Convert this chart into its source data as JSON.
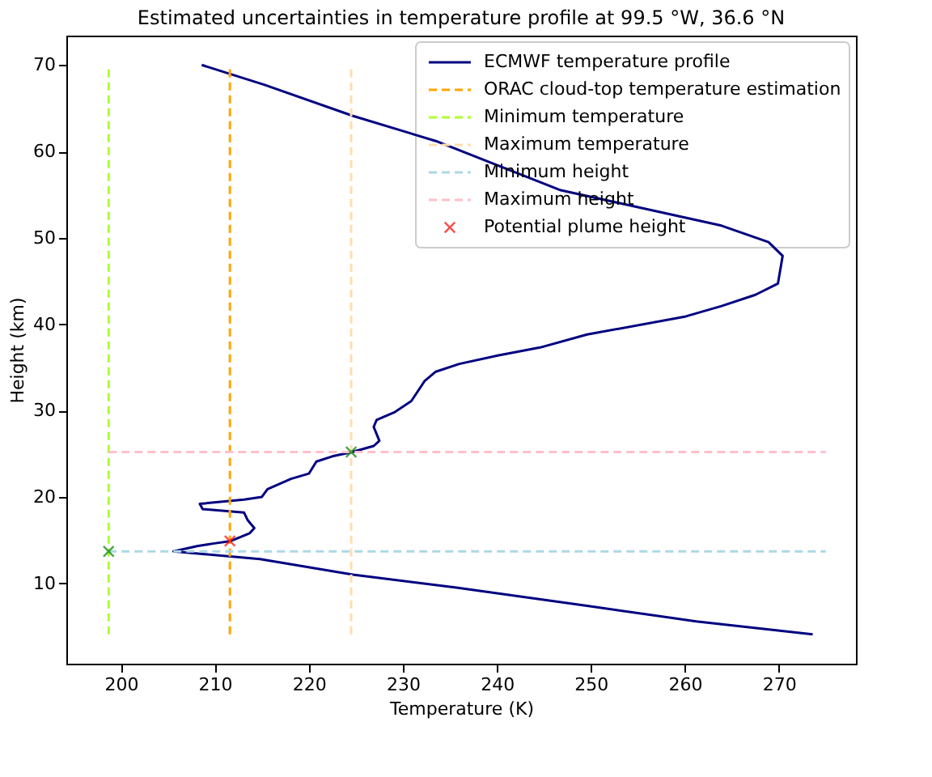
{
  "chart_data": {
    "type": "line",
    "title": "Estimated uncertainties in temperature profile at 99.5 °W, 36.6 °N",
    "xlabel": "Temperature (K)",
    "ylabel": "Height (km)",
    "xlim": [
      194.2,
      278.2
    ],
    "ylim": [
      0.7,
      73.4
    ],
    "xticks": [
      200,
      210,
      220,
      230,
      240,
      250,
      260,
      270
    ],
    "yticks": [
      10,
      20,
      30,
      40,
      50,
      60,
      70
    ],
    "grid": false,
    "legend": "top right",
    "series": [
      {
        "name": "ECMWF temperature profile",
        "color": "#000080",
        "line_style": "solid",
        "marker": "none",
        "x": [
          208.6,
          215.3,
          224.7,
          233.5,
          246.8,
          255.6,
          263.9,
          268.9,
          270.4,
          269.9,
          267.5,
          263.9,
          260.1,
          249.6,
          244.6,
          240.2,
          236.0,
          233.5,
          232.3,
          230.9,
          229.1,
          227.2,
          226.9,
          227.5,
          226.9,
          224.6,
          222.5,
          220.8,
          220.0,
          218.1,
          215.6,
          215.0,
          213.1,
          208.4,
          208.7,
          213.1,
          213.5,
          214.2,
          213.7,
          211.7,
          209.8,
          208.1,
          205.6,
          214.8,
          224.7,
          235.7,
          249.6,
          261.2,
          273.6
        ],
        "values": [
          70,
          67.7,
          64.1,
          61.2,
          55.5,
          53.4,
          51.4,
          49.5,
          47.9,
          44.7,
          43.4,
          42.1,
          40.9,
          38.8,
          37.3,
          36.4,
          35.4,
          34.5,
          33.4,
          31.1,
          29.8,
          28.9,
          28.1,
          26.5,
          25.9,
          25.2,
          24.7,
          24.1,
          22.7,
          22.1,
          20.9,
          20.0,
          19.7,
          19.2,
          18.6,
          18.2,
          17.3,
          16.4,
          15.8,
          14.9,
          14.6,
          14.3,
          13.7,
          12.8,
          11.0,
          9.5,
          7.4,
          5.6,
          4.1
        ]
      },
      {
        "name": "ORAC cloud-top temperature estimation",
        "type": "line",
        "color": "#ffa500",
        "line_style": "dashed",
        "marker": "none",
        "x": [
          211.6,
          211.6
        ],
        "values": [
          4.1,
          70
        ]
      },
      {
        "name": "Minimum temperature",
        "type": "line",
        "color": "#adff2f",
        "line_style": "dashed",
        "marker": "none",
        "x": [
          198.7,
          198.7
        ],
        "values": [
          4.1,
          70
        ]
      },
      {
        "name": "Maximum temperature",
        "type": "line",
        "color": "#ffdead",
        "line_style": "dashed",
        "marker": "none",
        "x": [
          224.5,
          224.5
        ],
        "values": [
          4.1,
          70
        ]
      },
      {
        "name": "Minimum height",
        "type": "line",
        "color": "#add8e6",
        "line_style": "dashed",
        "marker": "none",
        "x": [
          198.7,
          275
        ],
        "values": [
          13.7,
          13.7
        ]
      },
      {
        "name": "Maximum height",
        "type": "line",
        "color": "#ffc0cb",
        "line_style": "dashed",
        "marker": "none",
        "x": [
          198.7,
          275
        ],
        "values": [
          25.2,
          25.2
        ]
      },
      {
        "name": "Potential plume height",
        "type": "scatter",
        "color": "#ff0000",
        "marker": "cross",
        "x": [
          211.6
        ],
        "values": [
          14.9
        ]
      },
      {
        "type": "scatter",
        "color": "#008000",
        "marker": "cross",
        "x": [
          224.5,
          198.7
        ],
        "values": [
          25.2,
          13.7
        ]
      }
    ]
  }
}
